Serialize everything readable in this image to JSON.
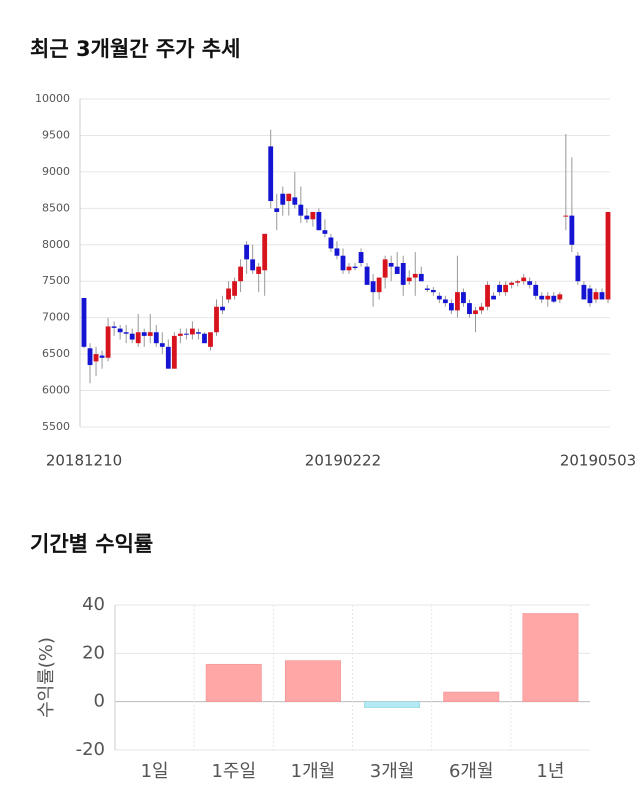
{
  "chart_data": [
    {
      "type": "candlestick",
      "title": "최근 3개월간 주가 추세",
      "up_color": "#d7141e",
      "down_color": "#1414d2",
      "grid": true,
      "ylim": [
        5500,
        10000
      ],
      "yticks": [
        5500,
        6000,
        6500,
        7000,
        7500,
        8000,
        8500,
        9000,
        9500,
        10000
      ],
      "categories": [
        "20181210",
        null,
        null,
        null,
        null,
        null,
        null,
        null,
        null,
        null,
        null,
        null,
        null,
        null,
        null,
        null,
        null,
        null,
        null,
        null,
        null,
        null,
        null,
        null,
        null,
        null,
        null,
        null,
        null,
        null,
        null,
        null,
        null,
        null,
        null,
        null,
        null,
        null,
        null,
        null,
        null,
        null,
        null,
        "20190222",
        null,
        null,
        null,
        null,
        null,
        null,
        null,
        null,
        null,
        null,
        null,
        null,
        null,
        null,
        null,
        null,
        null,
        null,
        null,
        null,
        null,
        null,
        null,
        null,
        null,
        null,
        null,
        null,
        null,
        null,
        null,
        null,
        null,
        null,
        null,
        null,
        null,
        null,
        null,
        null,
        null,
        null,
        null,
        "20190503"
      ],
      "values": [
        {
          "open": 7270,
          "high": 7270,
          "low": 6580,
          "close": 6600
        },
        {
          "open": 6580,
          "high": 6650,
          "low": 6100,
          "close": 6350
        },
        {
          "open": 6400,
          "high": 6600,
          "low": 6200,
          "close": 6500
        },
        {
          "open": 6480,
          "high": 6550,
          "low": 6300,
          "close": 6450
        },
        {
          "open": 6450,
          "high": 7000,
          "low": 6400,
          "close": 6880
        },
        {
          "open": 6880,
          "high": 6950,
          "low": 6750,
          "close": 6860
        },
        {
          "open": 6850,
          "high": 6900,
          "low": 6700,
          "close": 6800
        },
        {
          "open": 6800,
          "high": 6900,
          "low": 6650,
          "close": 6780
        },
        {
          "open": 6780,
          "high": 6850,
          "low": 6650,
          "close": 6700
        },
        {
          "open": 6650,
          "high": 7050,
          "low": 6600,
          "close": 6800
        },
        {
          "open": 6800,
          "high": 6850,
          "low": 6600,
          "close": 6750
        },
        {
          "open": 6750,
          "high": 7050,
          "low": 6650,
          "close": 6800
        },
        {
          "open": 6800,
          "high": 6900,
          "low": 6600,
          "close": 6650
        },
        {
          "open": 6650,
          "high": 6800,
          "low": 6500,
          "close": 6600
        },
        {
          "open": 6600,
          "high": 6700,
          "low": 6300,
          "close": 6300
        },
        {
          "open": 6300,
          "high": 6800,
          "low": 6300,
          "close": 6750
        },
        {
          "open": 6750,
          "high": 6850,
          "low": 6650,
          "close": 6780
        },
        {
          "open": 6780,
          "high": 6850,
          "low": 6700,
          "close": 6770
        },
        {
          "open": 6770,
          "high": 6950,
          "low": 6700,
          "close": 6850
        },
        {
          "open": 6800,
          "high": 6850,
          "low": 6700,
          "close": 6780
        },
        {
          "open": 6780,
          "high": 6800,
          "low": 6650,
          "close": 6650
        },
        {
          "open": 6600,
          "high": 6700,
          "low": 6550,
          "close": 6800
        },
        {
          "open": 6800,
          "high": 7250,
          "low": 6750,
          "close": 7150
        },
        {
          "open": 7150,
          "high": 7300,
          "low": 7050,
          "close": 7100
        },
        {
          "open": 7250,
          "high": 7500,
          "low": 7200,
          "close": 7400
        },
        {
          "open": 7300,
          "high": 7550,
          "low": 7250,
          "close": 7500
        },
        {
          "open": 7500,
          "high": 7800,
          "low": 7350,
          "close": 7700
        },
        {
          "open": 8000,
          "high": 8050,
          "low": 7600,
          "close": 7800
        },
        {
          "open": 7800,
          "high": 8000,
          "low": 7600,
          "close": 7650
        },
        {
          "open": 7600,
          "high": 7750,
          "low": 7350,
          "close": 7700
        },
        {
          "open": 7650,
          "high": 8150,
          "low": 7300,
          "close": 8150
        },
        {
          "open": 9350,
          "high": 9580,
          "low": 8500,
          "close": 8600
        },
        {
          "open": 8500,
          "high": 8700,
          "low": 8200,
          "close": 8450
        },
        {
          "open": 8700,
          "high": 8800,
          "low": 8400,
          "close": 8550
        },
        {
          "open": 8600,
          "high": 8700,
          "low": 8400,
          "close": 8700
        },
        {
          "open": 8650,
          "high": 9000,
          "low": 8500,
          "close": 8550
        },
        {
          "open": 8550,
          "high": 8800,
          "low": 8300,
          "close": 8400
        },
        {
          "open": 8400,
          "high": 8500,
          "low": 8300,
          "close": 8350
        },
        {
          "open": 8350,
          "high": 8450,
          "low": 8250,
          "close": 8450
        },
        {
          "open": 8450,
          "high": 8500,
          "low": 8200,
          "close": 8200
        },
        {
          "open": 8200,
          "high": 8350,
          "low": 8100,
          "close": 8150
        },
        {
          "open": 8100,
          "high": 8150,
          "low": 7900,
          "close": 7950
        },
        {
          "open": 7950,
          "high": 8050,
          "low": 7800,
          "close": 7850
        },
        {
          "open": 7850,
          "high": 7950,
          "low": 7600,
          "close": 7650
        },
        {
          "open": 7650,
          "high": 7750,
          "low": 7600,
          "close": 7700
        },
        {
          "open": 7700,
          "high": 7750,
          "low": 7650,
          "close": 7680
        },
        {
          "open": 7900,
          "high": 7950,
          "low": 7700,
          "close": 7750
        },
        {
          "open": 7700,
          "high": 7750,
          "low": 7450,
          "close": 7450
        },
        {
          "open": 7500,
          "high": 7600,
          "low": 7150,
          "close": 7350
        },
        {
          "open": 7350,
          "high": 7550,
          "low": 7250,
          "close": 7550
        },
        {
          "open": 7550,
          "high": 7850,
          "low": 7400,
          "close": 7800
        },
        {
          "open": 7750,
          "high": 7850,
          "low": 7500,
          "close": 7700
        },
        {
          "open": 7700,
          "high": 7900,
          "low": 7600,
          "close": 7600
        },
        {
          "open": 7750,
          "high": 7850,
          "low": 7300,
          "close": 7450
        },
        {
          "open": 7500,
          "high": 7650,
          "low": 7450,
          "close": 7550
        },
        {
          "open": 7550,
          "high": 7900,
          "low": 7300,
          "close": 7600
        },
        {
          "open": 7600,
          "high": 7700,
          "low": 7500,
          "close": 7500
        },
        {
          "open": 7400,
          "high": 7450,
          "low": 7350,
          "close": 7380
        },
        {
          "open": 7380,
          "high": 7420,
          "low": 7300,
          "close": 7350
        },
        {
          "open": 7300,
          "high": 7350,
          "low": 7200,
          "close": 7250
        },
        {
          "open": 7250,
          "high": 7300,
          "low": 7150,
          "close": 7200
        },
        {
          "open": 7200,
          "high": 7250,
          "low": 7050,
          "close": 7100
        },
        {
          "open": 7100,
          "high": 7850,
          "low": 7000,
          "close": 7350
        },
        {
          "open": 7350,
          "high": 7400,
          "low": 7150,
          "close": 7200
        },
        {
          "open": 7200,
          "high": 7250,
          "low": 7000,
          "close": 7050
        },
        {
          "open": 7050,
          "high": 7150,
          "low": 6800,
          "close": 7100
        },
        {
          "open": 7100,
          "high": 7200,
          "low": 7050,
          "close": 7150
        },
        {
          "open": 7150,
          "high": 7500,
          "low": 7100,
          "close": 7450
        },
        {
          "open": 7300,
          "high": 7350,
          "low": 7250,
          "close": 7250
        },
        {
          "open": 7450,
          "high": 7500,
          "low": 7300,
          "close": 7350
        },
        {
          "open": 7350,
          "high": 7500,
          "low": 7300,
          "close": 7450
        },
        {
          "open": 7450,
          "high": 7500,
          "low": 7400,
          "close": 7480
        },
        {
          "open": 7480,
          "high": 7520,
          "low": 7430,
          "close": 7500
        },
        {
          "open": 7500,
          "high": 7600,
          "low": 7450,
          "close": 7550
        },
        {
          "open": 7500,
          "high": 7550,
          "low": 7400,
          "close": 7450
        },
        {
          "open": 7450,
          "high": 7500,
          "low": 7250,
          "close": 7300
        },
        {
          "open": 7300,
          "high": 7350,
          "low": 7200,
          "close": 7250
        },
        {
          "open": 7250,
          "high": 7350,
          "low": 7150,
          "close": 7300
        },
        {
          "open": 7300,
          "high": 7350,
          "low": 7200,
          "close": 7220
        },
        {
          "open": 7250,
          "high": 7350,
          "low": 7200,
          "close": 7320
        },
        {
          "open": 8400,
          "high": 9520,
          "low": 8200,
          "close": 8400
        },
        {
          "open": 8400,
          "high": 9200,
          "low": 7900,
          "close": 8000
        },
        {
          "open": 7850,
          "high": 7900,
          "low": 7450,
          "close": 7500
        },
        {
          "open": 7450,
          "high": 7500,
          "low": 7250,
          "close": 7250
        },
        {
          "open": 7400,
          "high": 7450,
          "low": 7150,
          "close": 7200
        },
        {
          "open": 7250,
          "high": 7400,
          "low": 7200,
          "close": 7350
        },
        {
          "open": 7350,
          "high": 7400,
          "low": 7250,
          "close": 7250
        },
        {
          "open": 7250,
          "high": 8450,
          "low": 7200,
          "close": 8450
        }
      ]
    },
    {
      "type": "bar",
      "title": "기간별 수익률",
      "y_label": "수익률(%)",
      "categories": [
        "1일",
        "1주일",
        "1개월",
        "3개월",
        "6개월",
        "1년"
      ],
      "values": [
        0,
        15.5,
        17,
        -2.5,
        4,
        36.5
      ],
      "color": "#ffa6a6",
      "negative_color": "#b3e9f3",
      "grid": true,
      "ylim": [
        -20,
        40
      ],
      "yticks": [
        -20,
        0,
        20,
        40
      ]
    }
  ]
}
